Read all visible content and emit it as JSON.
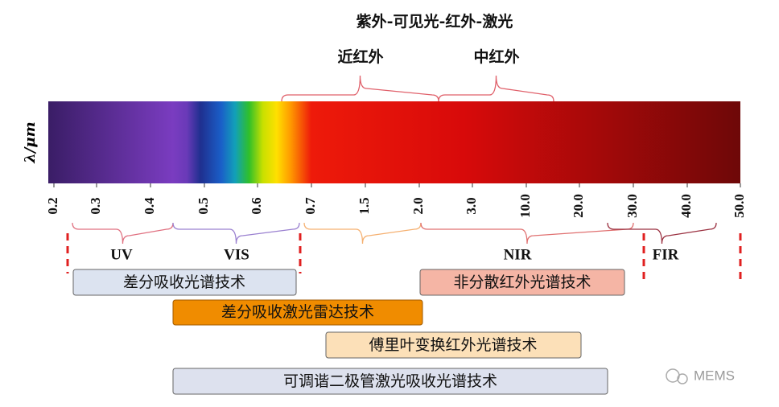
{
  "title": "紫外-可见光-红外-激光",
  "top_braces": [
    {
      "label": "近红外"
    },
    {
      "label": "中红外"
    }
  ],
  "axis_label": "λ/μm",
  "ticks": [
    "0.2",
    "0.3",
    "0.4",
    "0.5",
    "0.6",
    "0.7",
    "1.5",
    "2.0",
    "3.0",
    "10.0",
    "20.0",
    "30.0",
    "40.0",
    "50.0"
  ],
  "bands": [
    "UV",
    "VIS",
    "NIR",
    "FIR"
  ],
  "techniques": [
    "差分吸收光谱技术",
    "差分吸收激光雷达技术",
    "非分散红外光谱技术",
    "傅里叶变换红外光谱技术",
    "可调谐二极管激光吸收光谱技术"
  ],
  "watermark": "MEMS"
}
